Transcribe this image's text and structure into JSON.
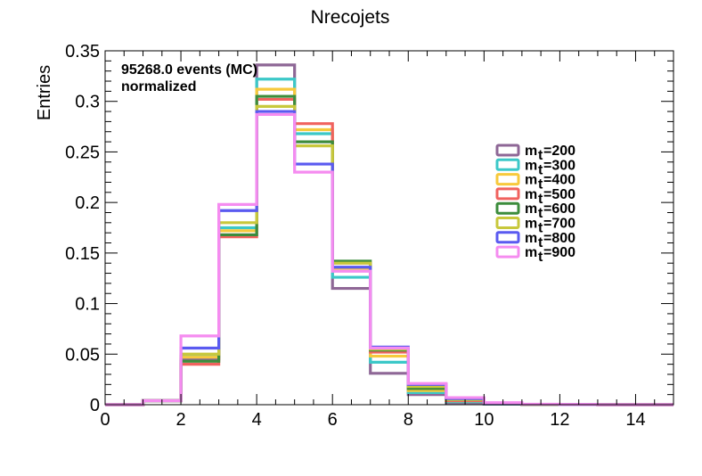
{
  "chart_data": {
    "type": "histogram-step",
    "title": "Nrecojets",
    "xlabel": "",
    "ylabel": "Entries",
    "xlim": [
      0,
      15
    ],
    "ylim": [
      0,
      0.35
    ],
    "x_ticks": [
      0,
      2,
      4,
      6,
      8,
      10,
      12,
      14
    ],
    "x_tick_labels": [
      "0",
      "2",
      "4",
      "6",
      "8",
      "10",
      "12",
      "14"
    ],
    "y_ticks": [
      0,
      0.05,
      0.1,
      0.15,
      0.2,
      0.25,
      0.3,
      0.35
    ],
    "y_tick_labels": [
      "0",
      "0.05",
      "0.1",
      "0.15",
      "0.2",
      "0.25",
      "0.3",
      "0.35"
    ],
    "bin_edges": [
      0,
      1,
      2,
      3,
      4,
      5,
      6,
      7,
      8,
      9,
      10,
      11,
      12,
      13,
      14,
      15
    ],
    "annotations": [
      "95268.0 events (MC)",
      "normalized"
    ],
    "legend_position": "right",
    "series": [
      {
        "name": "m_t=200",
        "legend_main": "m",
        "legend_sub": "t",
        "legend_value": "=200",
        "color": "#8e6796",
        "values": [
          0.0,
          0.004,
          0.045,
          0.168,
          0.336,
          0.26,
          0.115,
          0.031,
          0.01,
          0.002,
          0.0005,
          0.0002,
          0.0001,
          0.0,
          0.0
        ]
      },
      {
        "name": "m_t=300",
        "legend_main": "m",
        "legend_sub": "t",
        "legend_value": "=300",
        "color": "#3cc8c8",
        "values": [
          0.0,
          0.004,
          0.048,
          0.175,
          0.322,
          0.268,
          0.126,
          0.042,
          0.012,
          0.003,
          0.0008,
          0.0002,
          0.0001,
          0.0,
          0.0
        ]
      },
      {
        "name": "m_t=400",
        "legend_main": "m",
        "legend_sub": "t",
        "legend_value": "=400",
        "color": "#f7c93c",
        "values": [
          0.0,
          0.004,
          0.047,
          0.172,
          0.312,
          0.272,
          0.135,
          0.048,
          0.014,
          0.004,
          0.001,
          0.0003,
          0.0001,
          0.0,
          0.0
        ]
      },
      {
        "name": "m_t=500",
        "legend_main": "m",
        "legend_sub": "t",
        "legend_value": "=500",
        "color": "#f0625e",
        "values": [
          0.0,
          0.004,
          0.04,
          0.166,
          0.302,
          0.278,
          0.14,
          0.052,
          0.016,
          0.004,
          0.001,
          0.0003,
          0.0001,
          0.0,
          0.0
        ]
      },
      {
        "name": "m_t=600",
        "legend_main": "m",
        "legend_sub": "t",
        "legend_value": "=600",
        "color": "#3c8c3c",
        "values": [
          0.0,
          0.004,
          0.043,
          0.168,
          0.305,
          0.26,
          0.142,
          0.054,
          0.016,
          0.005,
          0.0012,
          0.0003,
          0.0001,
          0.0,
          0.0
        ]
      },
      {
        "name": "m_t=700",
        "legend_main": "m",
        "legend_sub": "t",
        "legend_value": "=700",
        "color": "#c8c83c",
        "values": [
          0.0,
          0.004,
          0.05,
          0.18,
          0.295,
          0.256,
          0.14,
          0.055,
          0.018,
          0.005,
          0.0012,
          0.0003,
          0.0001,
          0.0,
          0.0
        ]
      },
      {
        "name": "m_t=800",
        "legend_main": "m",
        "legend_sub": "t",
        "legend_value": "=800",
        "color": "#5a5af0",
        "values": [
          0.0,
          0.004,
          0.056,
          0.192,
          0.29,
          0.238,
          0.136,
          0.057,
          0.02,
          0.006,
          0.0015,
          0.0004,
          0.0001,
          0.0,
          0.0
        ]
      },
      {
        "name": "m_t=900",
        "legend_main": "m",
        "legend_sub": "t",
        "legend_value": "=900",
        "color": "#f58cf0",
        "values": [
          0.0,
          0.004,
          0.068,
          0.198,
          0.287,
          0.23,
          0.132,
          0.056,
          0.021,
          0.007,
          0.002,
          0.0005,
          0.0002,
          0.0,
          0.0
        ]
      }
    ]
  }
}
